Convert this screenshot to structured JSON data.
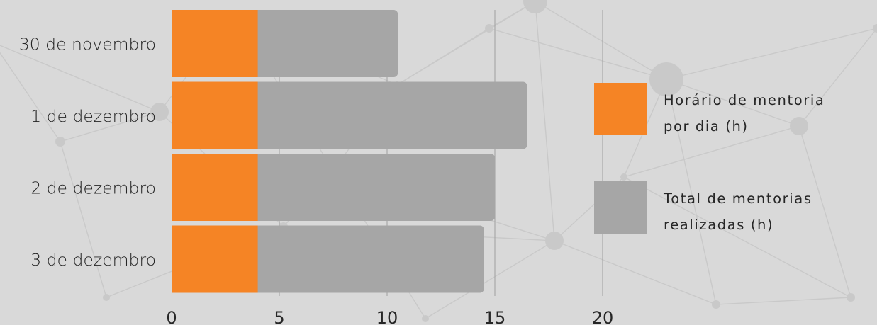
{
  "chart_data": {
    "type": "bar",
    "orientation": "horizontal",
    "stacked": false,
    "categories": [
      "30 de novembro",
      "1 de dezembro",
      "2 de dezembro",
      "3 de dezembro"
    ],
    "series": [
      {
        "name": "Total de mentorias realizadas (h)",
        "color": "#a6a6a6",
        "values": [
          10.5,
          16.5,
          15,
          14.5
        ]
      },
      {
        "name": "Horário de mentoria por dia (h)",
        "color": "#f58425",
        "values": [
          4,
          4,
          4,
          4
        ]
      }
    ],
    "xlim": [
      0,
      20
    ],
    "xticks": [
      0,
      5,
      10,
      15,
      20
    ],
    "xtick_labels": [
      "0",
      "5",
      "10",
      "15",
      "20"
    ],
    "grid": "vertical",
    "legend": {
      "placement": "right",
      "entries": [
        {
          "lines": [
            "Horário de mentoria",
            "por dia (h)"
          ],
          "color": "#f58425"
        },
        {
          "lines": [
            "Total de mentorias",
            "realizadas (h)"
          ],
          "color": "#a6a6a6"
        }
      ]
    },
    "title": "",
    "xlabel": "",
    "ylabel": ""
  }
}
